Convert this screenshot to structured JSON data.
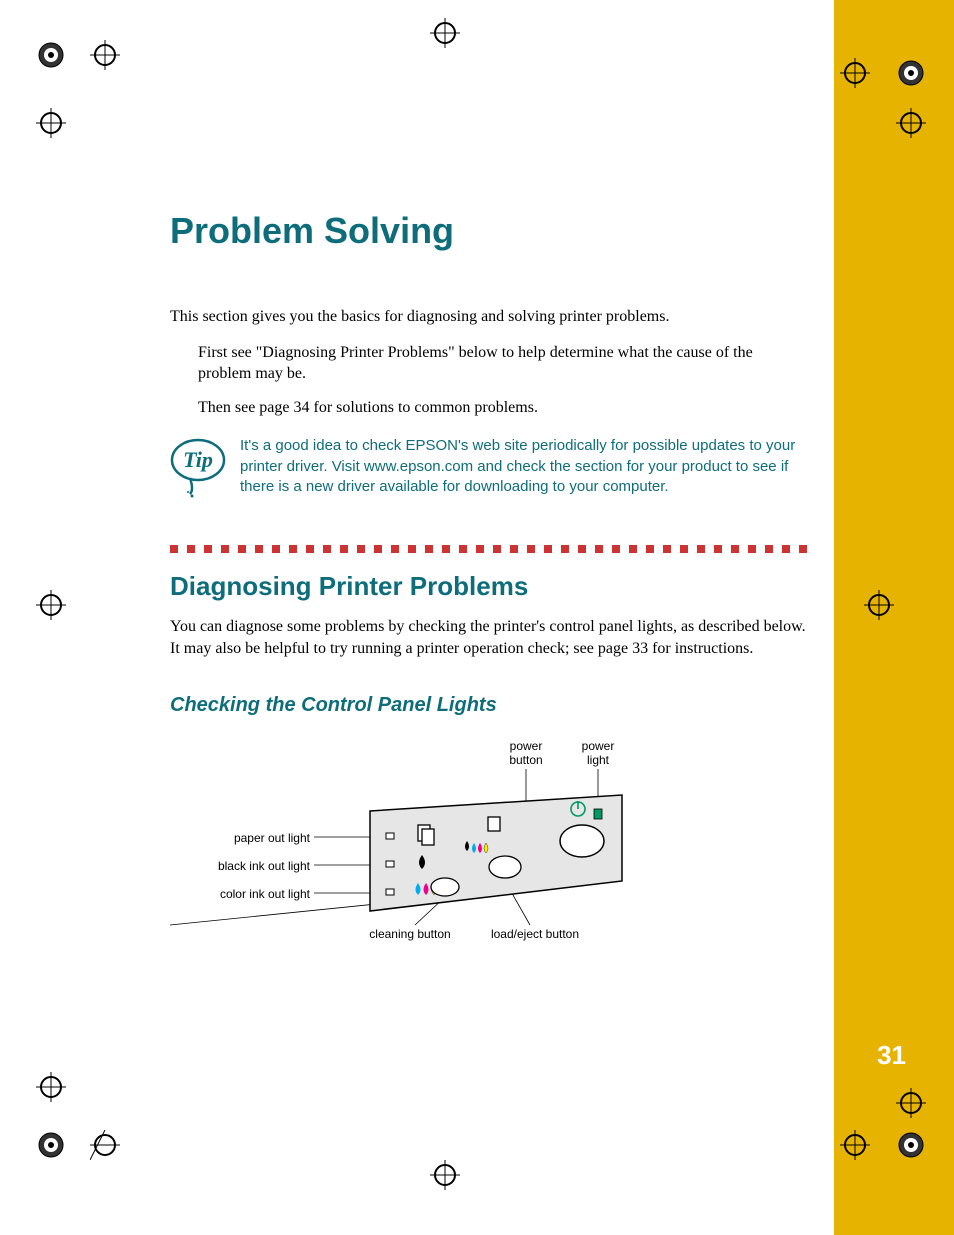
{
  "page": {
    "number": "31"
  },
  "colors": {
    "accent_teal": "#0d6d7a",
    "sidebar_gold": "#e6b300",
    "rule_red": "#cc3333",
    "text_black": "#000000",
    "page_white": "#ffffff"
  },
  "chapter": {
    "title": "Problem Solving"
  },
  "intro": {
    "p1": "This section gives you the basics for diagnosing and solving printer problems.",
    "p2": "First see \"Diagnosing Printer Problems\" below to help determine what the cause of the problem may be.",
    "p3": "Then see page 34 for solutions to common problems."
  },
  "tip": {
    "label": "Tip",
    "text": "It's a good idea to check EPSON's web site periodically for possible updates to your printer driver. Visit www.epson.com and check the section for your product to see if there is a new driver available for downloading to your computer."
  },
  "section1": {
    "heading": "Diagnosing Printer Problems",
    "body": "You can diagnose some problems by checking the printer's control panel lights, as described below. It may also be helpful to try running a printer operation check; see page 33 for instructions."
  },
  "section2": {
    "heading": "Checking the Control Panel Lights"
  },
  "diagram": {
    "labels": {
      "power_button": "power\nbutton",
      "power_light": "power\nlight",
      "paper_out": "paper out light",
      "black_ink": "black ink out light",
      "color_ink": "color ink out light",
      "cleaning": "cleaning button",
      "load_eject": "load/eject button"
    },
    "panel": {
      "fill": "#e6e6e6",
      "stroke": "#000000"
    }
  }
}
